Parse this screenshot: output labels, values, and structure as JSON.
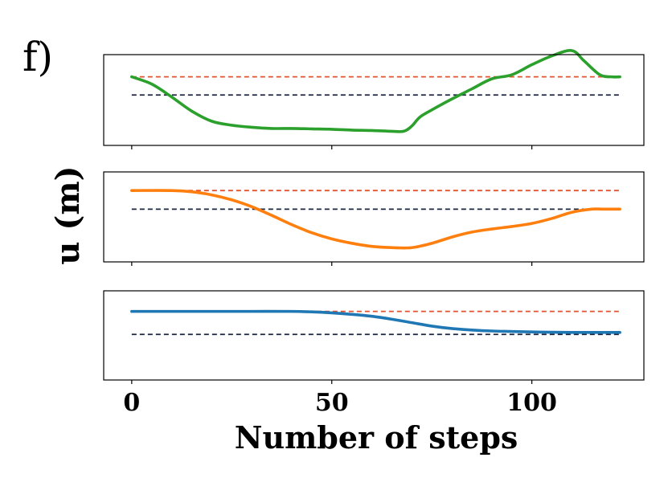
{
  "figure": {
    "panel_label": "f)"
  },
  "chart_data": {
    "type": "line",
    "ylabel": "u (m)",
    "xlabel": "Number of steps",
    "xlim": [
      -7,
      128
    ],
    "xticks": [
      0,
      50,
      100
    ],
    "colors": {
      "reference": "#e0532f",
      "initial": "#1a2540"
    },
    "subplots": [
      {
        "name": "top",
        "ylim": [
          -1.7,
          0.55
        ],
        "reference_level": 0.0,
        "initial_level": -0.45,
        "series": [
          {
            "color": "#2ca02c",
            "x": [
              0,
              5,
              10,
              15,
              20,
              25,
              30,
              35,
              40,
              45,
              50,
              55,
              60,
              65,
              68,
              70,
              72,
              75,
              80,
              85,
              90,
              95,
              100,
              105,
              110,
              113,
              117,
              120,
              122
            ],
            "y": [
              0.0,
              -0.18,
              -0.5,
              -0.85,
              -1.1,
              -1.2,
              -1.25,
              -1.28,
              -1.28,
              -1.29,
              -1.3,
              -1.32,
              -1.33,
              -1.35,
              -1.35,
              -1.22,
              -1.0,
              -0.82,
              -0.55,
              -0.3,
              -0.05,
              0.05,
              0.3,
              0.52,
              0.65,
              0.4,
              0.05,
              0.0,
              0.0
            ]
          }
        ]
      },
      {
        "name": "middle",
        "ylim": [
          -1.15,
          0.3
        ],
        "reference_level": 0.0,
        "initial_level": -0.3,
        "series": [
          {
            "color": "#ff7f0e",
            "x": [
              0,
              10,
              15,
              20,
              25,
              30,
              35,
              40,
              45,
              50,
              55,
              60,
              65,
              70,
              75,
              80,
              85,
              90,
              95,
              100,
              105,
              110,
              115,
              118,
              122
            ],
            "y": [
              0.0,
              0.0,
              -0.02,
              -0.07,
              -0.15,
              -0.26,
              -0.4,
              -0.55,
              -0.68,
              -0.78,
              -0.85,
              -0.9,
              -0.92,
              -0.92,
              -0.85,
              -0.75,
              -0.67,
              -0.62,
              -0.58,
              -0.53,
              -0.45,
              -0.35,
              -0.3,
              -0.3,
              -0.3
            ]
          }
        ]
      },
      {
        "name": "bottom",
        "ylim": [
          -1.4,
          0.42
        ],
        "reference_level": 0.0,
        "initial_level": -0.47,
        "series": [
          {
            "color": "#1f77b4",
            "x": [
              0,
              10,
              20,
              30,
              40,
              45,
              50,
              55,
              60,
              65,
              70,
              75,
              80,
              85,
              90,
              95,
              100,
              105,
              110,
              115,
              122
            ],
            "y": [
              0.0,
              0.0,
              0.0,
              0.0,
              0.0,
              -0.01,
              -0.03,
              -0.06,
              -0.1,
              -0.16,
              -0.23,
              -0.3,
              -0.35,
              -0.38,
              -0.4,
              -0.41,
              -0.42,
              -0.425,
              -0.43,
              -0.43,
              -0.43
            ]
          }
        ]
      }
    ]
  }
}
